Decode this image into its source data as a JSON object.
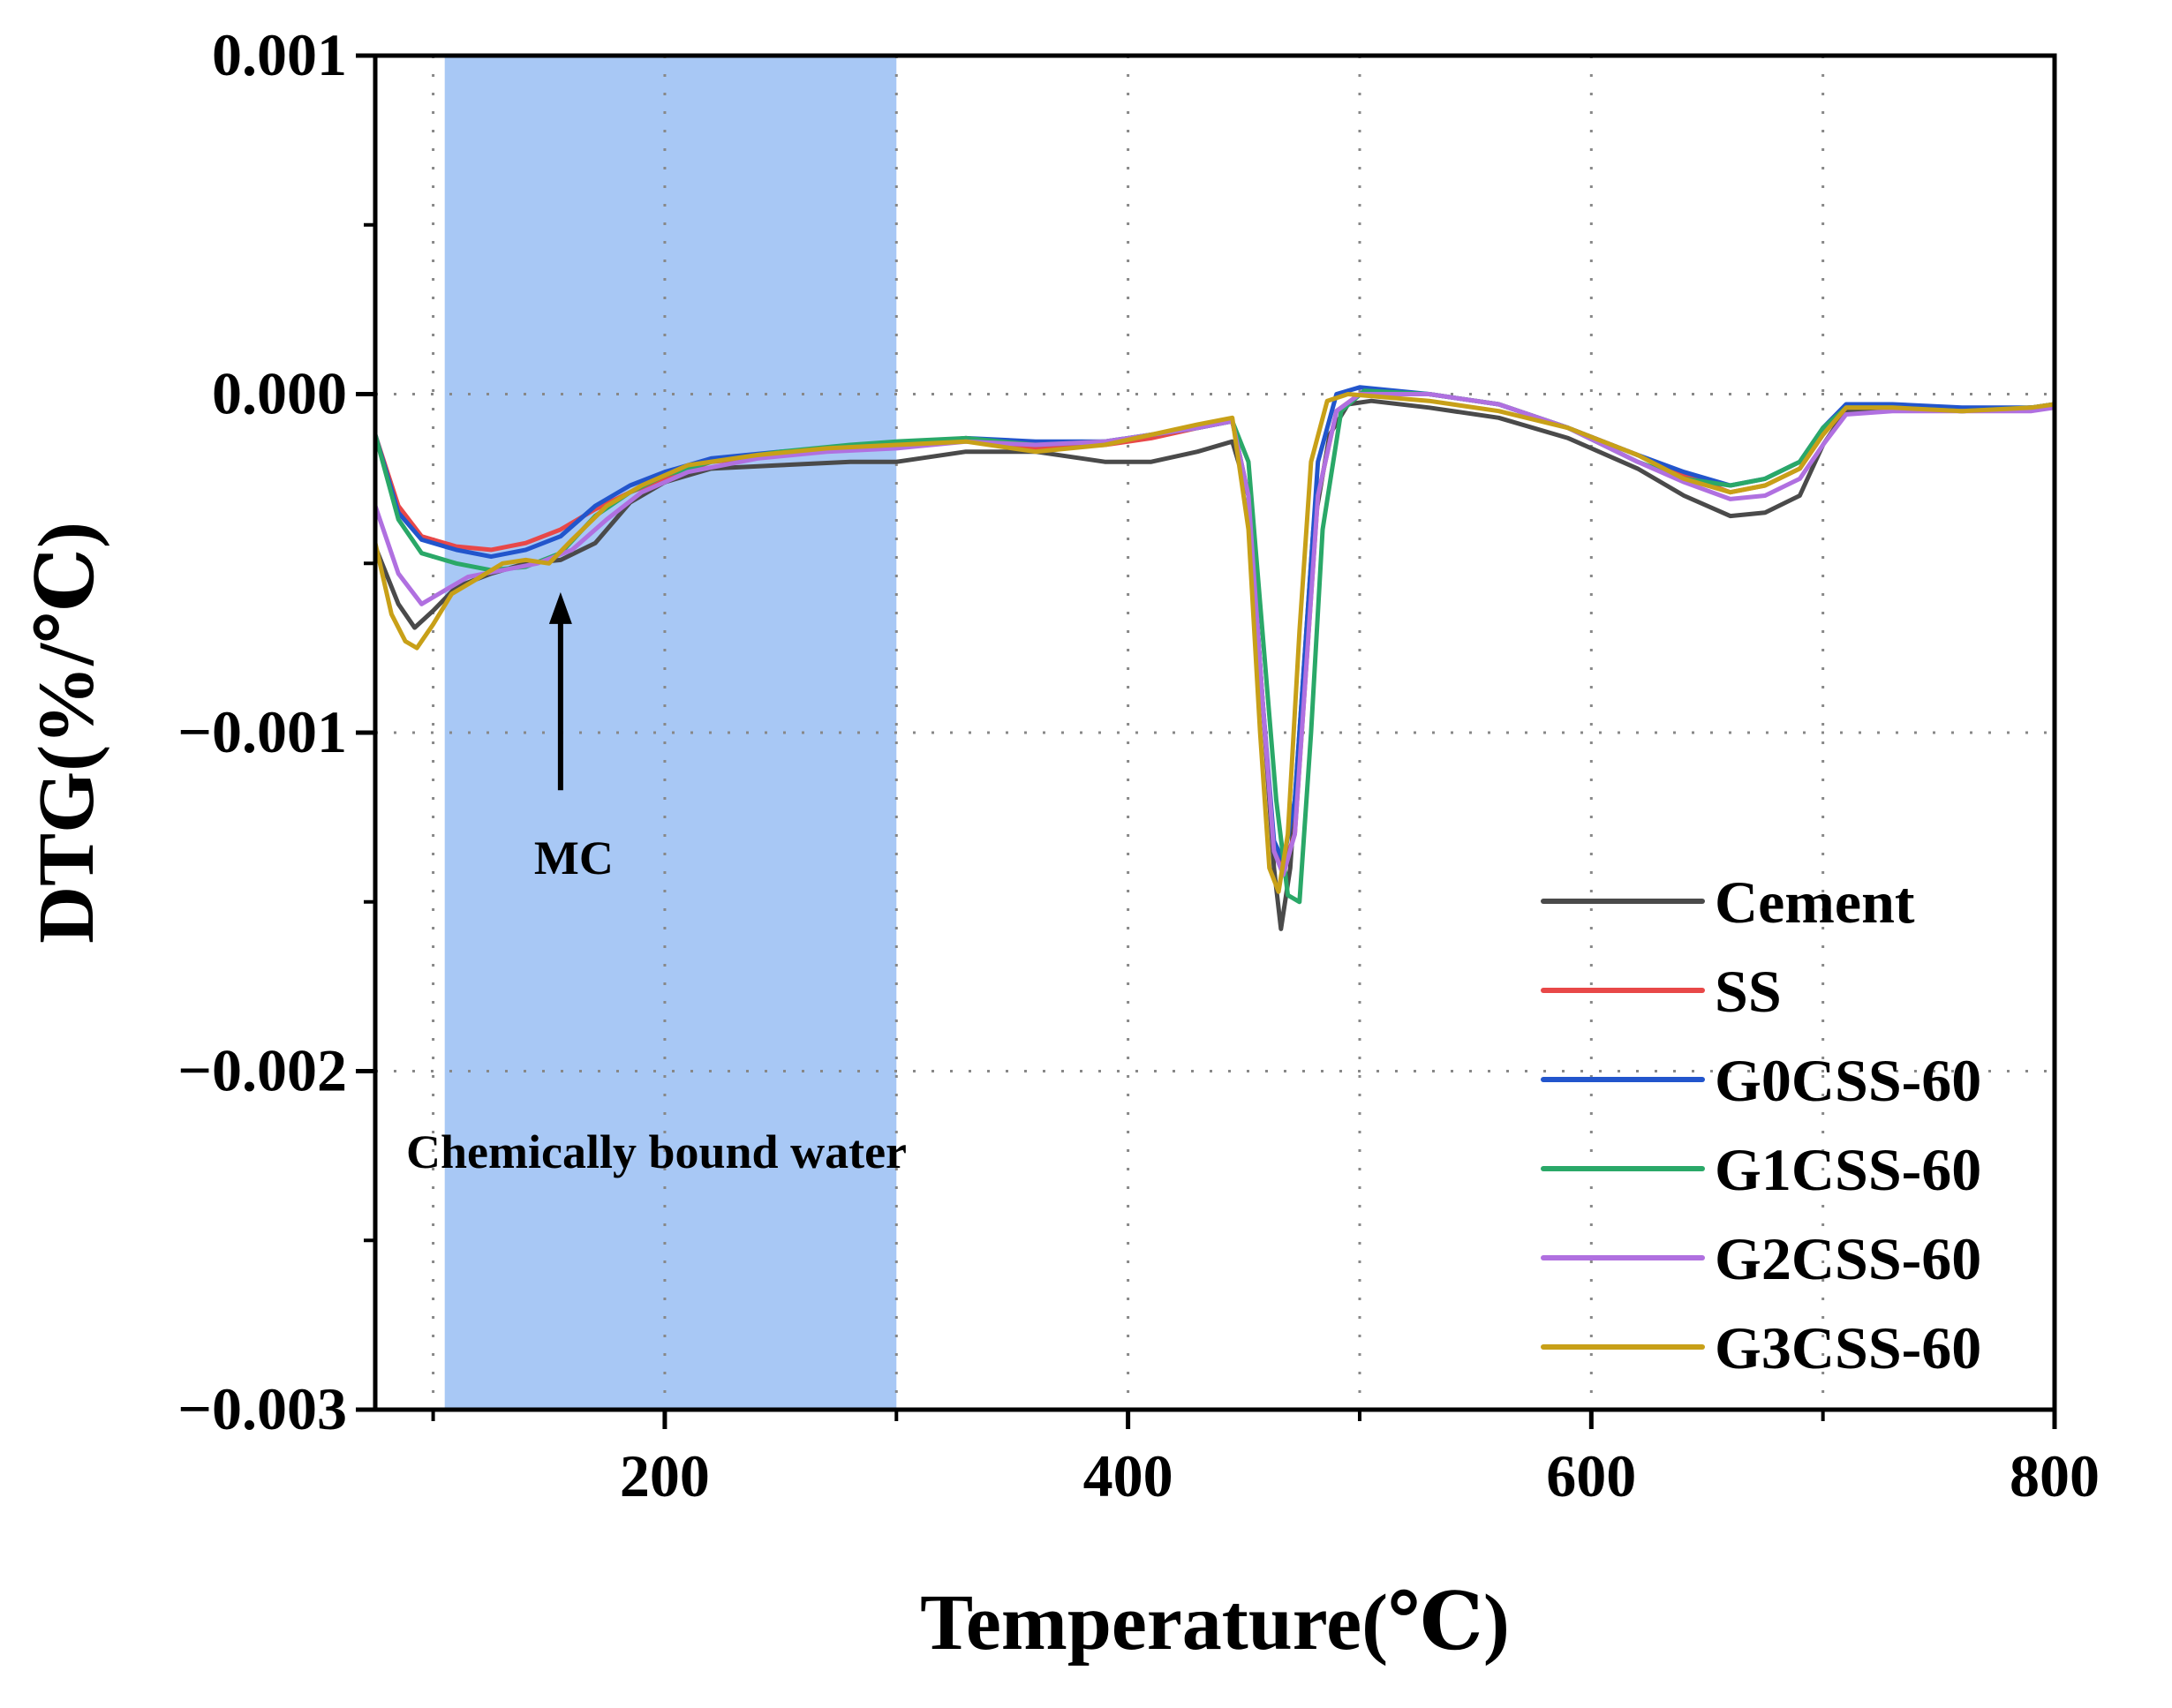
{
  "chart_data": {
    "type": "line",
    "title": "",
    "xlabel": "Temperature(℃)",
    "ylabel": "DTG(%/℃)",
    "xlim": [
      75,
      800
    ],
    "ylim": [
      -0.003,
      0.001
    ],
    "x_ticks": [
      200,
      400,
      600,
      800
    ],
    "x_tick_labels": [
      "200",
      "400",
      "600",
      "800"
    ],
    "x_minor_ticks": [
      100,
      300,
      500,
      700
    ],
    "y_ticks": [
      0.001,
      0.0,
      -0.001,
      -0.002,
      -0.003
    ],
    "y_tick_labels": [
      "0.001",
      "0.000",
      "−0.001",
      "−0.002",
      "−0.003"
    ],
    "y_minor_ticks": [
      0.0005,
      -0.0005,
      -0.0015,
      -0.0025
    ],
    "grid": "dotted at major ticks",
    "legend_position": "bottom-right",
    "shaded_region": {
      "x_range": [
        105,
        300
      ],
      "color": "#a8c8f5",
      "label": "Chemically bound water"
    },
    "annotations": [
      {
        "text": "MC",
        "x": 155,
        "arrow_from": -0.00117,
        "arrow_to": -0.00058
      }
    ],
    "series": [
      {
        "name": "Cement",
        "color": "#4a4a4a",
        "x": [
          75,
          85,
          92,
          100,
          110,
          125,
          140,
          155,
          170,
          185,
          200,
          220,
          250,
          280,
          300,
          330,
          360,
          390,
          410,
          430,
          445,
          452,
          458,
          463,
          466,
          470,
          475,
          480,
          487,
          495,
          505,
          530,
          560,
          590,
          620,
          640,
          660,
          675,
          690,
          700,
          710,
          730,
          760,
          790,
          800
        ],
        "y": [
          -0.00045,
          -0.00062,
          -0.00069,
          -0.00064,
          -0.00057,
          -0.00053,
          -0.0005,
          -0.00049,
          -0.00044,
          -0.00032,
          -0.00026,
          -0.00022,
          -0.00021,
          -0.0002,
          -0.0002,
          -0.00017,
          -0.00017,
          -0.0002,
          -0.0002,
          -0.00017,
          -0.00014,
          -0.0003,
          -0.0009,
          -0.0014,
          -0.00158,
          -0.0014,
          -0.0009,
          -0.0004,
          -0.00012,
          -3e-05,
          -2e-05,
          -4e-05,
          -7e-05,
          -0.00013,
          -0.00022,
          -0.0003,
          -0.00036,
          -0.00035,
          -0.0003,
          -0.00015,
          -5e-05,
          -4e-05,
          -5e-05,
          -4e-05,
          -3e-05
        ]
      },
      {
        "name": "SS",
        "color": "#e84848",
        "x": [
          75,
          85,
          95,
          110,
          125,
          140,
          155,
          170,
          185,
          200,
          220,
          250,
          280,
          300,
          330,
          360,
          390,
          410,
          430,
          445,
          452,
          458,
          463,
          467,
          472,
          477,
          482,
          490,
          500,
          530,
          560,
          590,
          620,
          640,
          660,
          675,
          690,
          700,
          710,
          730,
          760,
          790,
          800
        ],
        "y": [
          -0.00012,
          -0.00033,
          -0.00042,
          -0.00045,
          -0.00046,
          -0.00044,
          -0.0004,
          -0.00034,
          -0.00029,
          -0.00025,
          -0.0002,
          -0.00018,
          -0.00016,
          -0.00015,
          -0.00013,
          -0.00016,
          -0.00015,
          -0.00013,
          -0.0001,
          -8e-05,
          -0.0003,
          -0.0009,
          -0.00135,
          -0.0014,
          -0.0013,
          -0.0008,
          -0.0003,
          -5e-05,
          0.0,
          0.0,
          -3e-05,
          -0.0001,
          -0.00018,
          -0.00024,
          -0.00029,
          -0.00027,
          -0.00022,
          -0.00012,
          -4e-05,
          -4e-05,
          -5e-05,
          -4e-05,
          -3e-05
        ]
      },
      {
        "name": "G0CSS-60",
        "color": "#2255cc",
        "x": [
          75,
          85,
          95,
          110,
          125,
          140,
          155,
          170,
          185,
          200,
          220,
          250,
          280,
          300,
          330,
          360,
          390,
          410,
          430,
          445,
          452,
          458,
          463,
          467,
          472,
          477,
          482,
          490,
          500,
          530,
          560,
          590,
          620,
          640,
          660,
          675,
          690,
          700,
          710,
          730,
          760,
          790,
          800
        ],
        "y": [
          -0.00012,
          -0.00035,
          -0.00043,
          -0.00046,
          -0.00048,
          -0.00046,
          -0.00042,
          -0.00033,
          -0.00027,
          -0.00023,
          -0.00019,
          -0.00017,
          -0.00016,
          -0.00015,
          -0.00013,
          -0.00014,
          -0.00014,
          -0.00012,
          -0.0001,
          -8e-05,
          -0.0003,
          -0.0009,
          -0.00132,
          -0.00138,
          -0.0012,
          -0.0007,
          -0.0002,
          0.0,
          2e-05,
          0.0,
          -3e-05,
          -0.0001,
          -0.00018,
          -0.00023,
          -0.00027,
          -0.00025,
          -0.0002,
          -0.0001,
          -3e-05,
          -3e-05,
          -4e-05,
          -4e-05,
          -3e-05
        ]
      },
      {
        "name": "G1CSS-60",
        "color": "#2aa868",
        "x": [
          75,
          85,
          95,
          110,
          125,
          140,
          155,
          170,
          185,
          200,
          220,
          250,
          280,
          300,
          330,
          360,
          390,
          410,
          430,
          445,
          452,
          458,
          464,
          469,
          474,
          479,
          484,
          492,
          502,
          530,
          560,
          590,
          620,
          640,
          660,
          675,
          690,
          700,
          710,
          730,
          760,
          790,
          800
        ],
        "y": [
          -0.00012,
          -0.00037,
          -0.00047,
          -0.0005,
          -0.00052,
          -0.00051,
          -0.00047,
          -0.00036,
          -0.00029,
          -0.00024,
          -0.0002,
          -0.00017,
          -0.00015,
          -0.00014,
          -0.00013,
          -0.00015,
          -0.00014,
          -0.00012,
          -0.0001,
          -8e-05,
          -0.0002,
          -0.0007,
          -0.0012,
          -0.00148,
          -0.0015,
          -0.001,
          -0.0004,
          -5e-05,
          1e-05,
          0.0,
          -3e-05,
          -0.0001,
          -0.0002,
          -0.00025,
          -0.00027,
          -0.00025,
          -0.0002,
          -0.0001,
          -4e-05,
          -4e-05,
          -5e-05,
          -4e-05,
          -3e-05
        ]
      },
      {
        "name": "G2CSS-60",
        "color": "#b070e0",
        "x": [
          75,
          85,
          95,
          105,
          115,
          130,
          145,
          160,
          175,
          190,
          210,
          240,
          270,
          300,
          330,
          360,
          390,
          410,
          430,
          445,
          452,
          458,
          463,
          467,
          472,
          477,
          482,
          490,
          500,
          530,
          560,
          590,
          620,
          640,
          660,
          675,
          690,
          700,
          710,
          730,
          760,
          790,
          800
        ],
        "y": [
          -0.00033,
          -0.00053,
          -0.00062,
          -0.00058,
          -0.00054,
          -0.00052,
          -0.0005,
          -0.00046,
          -0.00037,
          -0.00029,
          -0.00023,
          -0.00019,
          -0.00017,
          -0.00016,
          -0.00014,
          -0.00015,
          -0.00014,
          -0.00012,
          -0.0001,
          -8e-05,
          -0.0003,
          -0.0009,
          -0.00135,
          -0.00142,
          -0.0013,
          -0.0008,
          -0.0003,
          -5e-05,
          0.0,
          0.0,
          -3e-05,
          -0.0001,
          -0.0002,
          -0.00026,
          -0.00031,
          -0.0003,
          -0.00025,
          -0.00015,
          -6e-05,
          -5e-05,
          -5e-05,
          -5e-05,
          -4e-05
        ]
      },
      {
        "name": "G3CSS-60",
        "color": "#c8a018",
        "x": [
          75,
          82,
          88,
          93,
          100,
          108,
          118,
          130,
          140,
          150,
          160,
          175,
          190,
          210,
          240,
          270,
          300,
          330,
          360,
          390,
          410,
          430,
          445,
          452,
          457,
          461,
          465,
          469,
          474,
          479,
          486,
          495,
          530,
          560,
          590,
          620,
          640,
          660,
          675,
          690,
          700,
          710,
          730,
          760,
          790,
          800
        ],
        "y": [
          -0.00044,
          -0.00065,
          -0.00073,
          -0.00075,
          -0.00068,
          -0.00059,
          -0.00055,
          -0.0005,
          -0.00049,
          -0.0005,
          -0.00043,
          -0.00033,
          -0.00027,
          -0.00021,
          -0.00018,
          -0.00016,
          -0.00015,
          -0.00014,
          -0.00017,
          -0.00015,
          -0.00012,
          -9e-05,
          -7e-05,
          -0.0004,
          -0.001,
          -0.0014,
          -0.00147,
          -0.0013,
          -0.0007,
          -0.0002,
          -2e-05,
          0.0,
          -2e-05,
          -5e-05,
          -0.0001,
          -0.00018,
          -0.00025,
          -0.00029,
          -0.00027,
          -0.00022,
          -0.00012,
          -4e-05,
          -4e-05,
          -5e-05,
          -4e-05,
          -3e-05
        ]
      }
    ]
  }
}
